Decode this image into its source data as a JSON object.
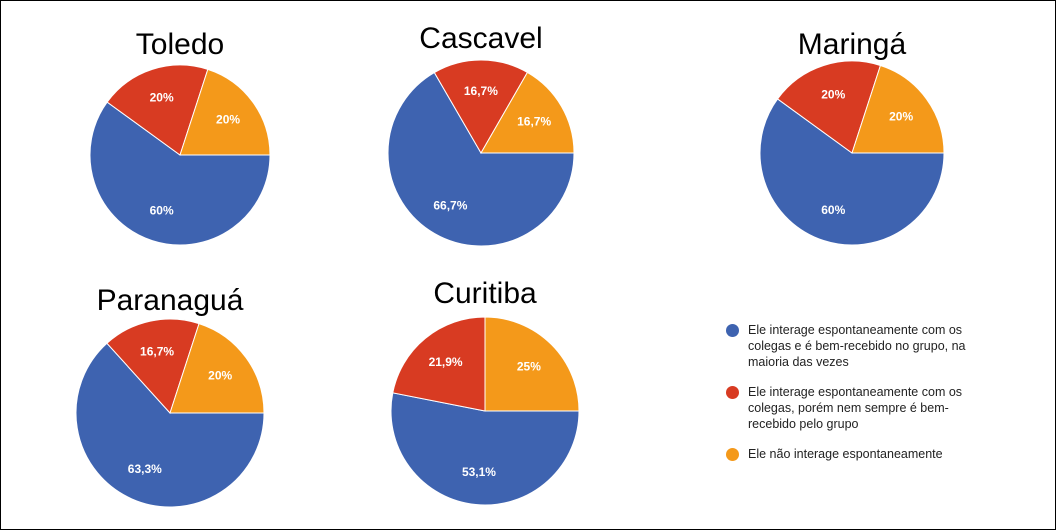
{
  "chart_data": [
    {
      "type": "pie",
      "title": "Toledo",
      "values": [
        60,
        20,
        20
      ],
      "value_labels": [
        "60%",
        "20%",
        "20%"
      ]
    },
    {
      "type": "pie",
      "title": "Cascavel",
      "values": [
        66.7,
        16.7,
        16.7
      ],
      "value_labels": [
        "66,7%",
        "16,7%",
        "16,7%"
      ]
    },
    {
      "type": "pie",
      "title": "Maringá",
      "values": [
        60,
        20,
        20
      ],
      "value_labels": [
        "60%",
        "20%",
        "20%"
      ]
    },
    {
      "type": "pie",
      "title": "Paranaguá",
      "values": [
        63.3,
        16.7,
        20
      ],
      "value_labels": [
        "63,3%",
        "16,7%",
        "20%"
      ]
    },
    {
      "type": "pie",
      "title": "Curitiba",
      "values": [
        53.1,
        21.9,
        25
      ],
      "value_labels": [
        "53,1%",
        "21,9%",
        "25%"
      ]
    }
  ],
  "legend": {
    "labels": [
      "Ele interage espontaneamente com os colegas e é bem-recebido no grupo, na maioria das vezes",
      "Ele interage espontaneamente com os colegas, porém nem sempre é bem-recebido pelo grupo",
      "Ele não interage espontaneamente"
    ],
    "colors": [
      "#3e63b0",
      "#d83b22",
      "#f4991a"
    ]
  }
}
